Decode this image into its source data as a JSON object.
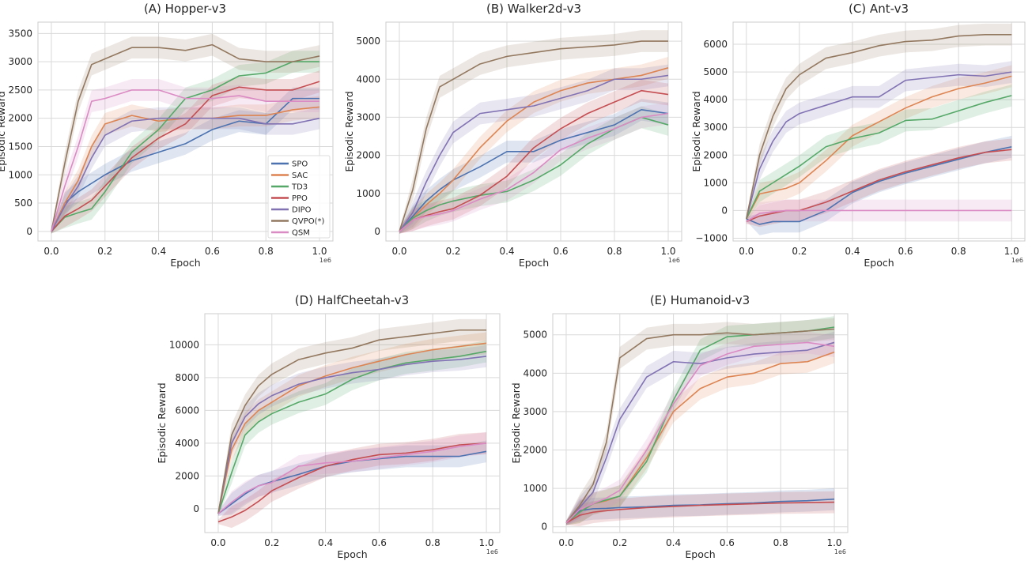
{
  "chart_data": [
    {
      "type": "line",
      "title": "(A) Hopper-v3",
      "xlabel": "Epoch",
      "ylabel": "Episodic Reward",
      "x_offset_label": "1e6",
      "xlim": [
        -0.05,
        1.05
      ],
      "ylim": [
        -170,
        3700
      ],
      "xticks": [
        "0.0",
        "0.2",
        "0.4",
        "0.6",
        "0.8",
        "1.0"
      ],
      "yticks": [
        "0",
        "500",
        "1000",
        "1500",
        "2000",
        "2500",
        "3000",
        "3500"
      ],
      "grid": true,
      "shaded_bands": true,
      "legend": {
        "placement": "lower-right",
        "entries": [
          "SPO",
          "SAC",
          "TD3",
          "PPO",
          "DIPO",
          "QVPO(*)",
          "QSM"
        ]
      },
      "x": [
        0,
        0.05,
        0.1,
        0.15,
        0.2,
        0.3,
        0.4,
        0.5,
        0.6,
        0.7,
        0.8,
        0.9,
        1.0
      ],
      "series": [
        {
          "name": "SPO",
          "values": [
            0,
            500,
            700,
            850,
            1000,
            1250,
            1400,
            1550,
            1800,
            1950,
            1900,
            2350,
            2350
          ]
        },
        {
          "name": "SAC",
          "values": [
            0,
            500,
            900,
            1500,
            1900,
            2050,
            1950,
            2000,
            2000,
            2050,
            2050,
            2150,
            2200
          ]
        },
        {
          "name": "TD3",
          "values": [
            0,
            250,
            330,
            400,
            700,
            1400,
            1800,
            2350,
            2500,
            2750,
            2800,
            3000,
            3000
          ]
        },
        {
          "name": "PPO",
          "values": [
            0,
            270,
            400,
            550,
            800,
            1300,
            1650,
            1900,
            2400,
            2550,
            2500,
            2500,
            2650
          ]
        },
        {
          "name": "DIPO",
          "values": [
            0,
            450,
            800,
            1300,
            1700,
            1950,
            2000,
            2000,
            2000,
            2000,
            1900,
            1900,
            2000
          ]
        },
        {
          "name": "QVPO(*)",
          "values": [
            0,
            1200,
            2300,
            2950,
            3050,
            3250,
            3250,
            3200,
            3300,
            3050,
            3000,
            3000,
            3100
          ]
        },
        {
          "name": "QSM",
          "values": [
            0,
            800,
            1500,
            2300,
            2350,
            2500,
            2500,
            2350,
            2350,
            2400,
            2300,
            2300,
            2300
          ]
        }
      ]
    },
    {
      "type": "line",
      "title": "(B) Walker2d-v3",
      "xlabel": "Epoch",
      "ylabel": "Episodic Reward",
      "x_offset_label": "1e6",
      "xlim": [
        -0.05,
        1.05
      ],
      "ylim": [
        -250,
        5500
      ],
      "xticks": [
        "0.0",
        "0.2",
        "0.4",
        "0.6",
        "0.8",
        "1.0"
      ],
      "yticks": [
        "0",
        "1000",
        "2000",
        "3000",
        "4000",
        "5000"
      ],
      "grid": true,
      "shaded_bands": true,
      "x": [
        0,
        0.05,
        0.1,
        0.15,
        0.2,
        0.3,
        0.4,
        0.5,
        0.6,
        0.7,
        0.8,
        0.9,
        1.0
      ],
      "series": [
        {
          "name": "SPO",
          "values": [
            0,
            400,
            800,
            1100,
            1350,
            1700,
            2100,
            2100,
            2400,
            2600,
            2800,
            3200,
            3100
          ]
        },
        {
          "name": "SAC",
          "values": [
            0,
            350,
            700,
            1000,
            1350,
            2200,
            2900,
            3400,
            3700,
            3900,
            4000,
            4100,
            4300
          ]
        },
        {
          "name": "TD3",
          "values": [
            0,
            350,
            550,
            700,
            800,
            950,
            1050,
            1350,
            1750,
            2300,
            2700,
            3000,
            2800
          ]
        },
        {
          "name": "PPO",
          "values": [
            0,
            300,
            420,
            520,
            600,
            950,
            1450,
            2200,
            2700,
            3100,
            3400,
            3700,
            3600
          ]
        },
        {
          "name": "DIPO",
          "values": [
            0,
            500,
            1300,
            2000,
            2600,
            3100,
            3200,
            3300,
            3500,
            3700,
            4000,
            4000,
            4100
          ]
        },
        {
          "name": "QVPO(*)",
          "values": [
            0,
            1100,
            2700,
            3800,
            4000,
            4400,
            4600,
            4700,
            4800,
            4850,
            4900,
            5000,
            5000
          ]
        },
        {
          "name": "QSM",
          "values": [
            0,
            300,
            400,
            460,
            550,
            850,
            1100,
            1550,
            2150,
            2450,
            2700,
            3000,
            3100
          ]
        }
      ]
    },
    {
      "type": "line",
      "title": "(C) Ant-v3",
      "xlabel": "Epoch",
      "ylabel": "Episodic Reward",
      "x_offset_label": "1e6",
      "xlim": [
        -0.05,
        1.05
      ],
      "ylim": [
        -1100,
        6800
      ],
      "xticks": [
        "0.0",
        "0.2",
        "0.4",
        "0.6",
        "0.8",
        "1.0"
      ],
      "yticks": [
        "−1000",
        "0",
        "1000",
        "2000",
        "3000",
        "4000",
        "5000",
        "6000"
      ],
      "grid": true,
      "shaded_bands": true,
      "x": [
        0,
        0.05,
        0.1,
        0.15,
        0.2,
        0.3,
        0.4,
        0.5,
        0.6,
        0.7,
        0.8,
        0.9,
        1.0
      ],
      "series": [
        {
          "name": "SPO",
          "values": [
            -300,
            -500,
            -400,
            -400,
            -400,
            0,
            650,
            1050,
            1350,
            1600,
            1850,
            2100,
            2300
          ]
        },
        {
          "name": "SAC",
          "values": [
            -300,
            600,
            700,
            800,
            1000,
            1800,
            2700,
            3200,
            3700,
            4100,
            4400,
            4600,
            4850
          ]
        },
        {
          "name": "TD3",
          "values": [
            -300,
            700,
            1000,
            1300,
            1600,
            2300,
            2600,
            2800,
            3250,
            3300,
            3600,
            3900,
            4150
          ]
        },
        {
          "name": "PPO",
          "values": [
            -400,
            -200,
            -100,
            0,
            0,
            300,
            700,
            1100,
            1400,
            1650,
            1900,
            2100,
            2200
          ]
        },
        {
          "name": "DIPO",
          "values": [
            -300,
            1500,
            2500,
            3200,
            3500,
            3800,
            4100,
            4100,
            4700,
            4800,
            4900,
            4850,
            5000
          ]
        },
        {
          "name": "QVPO(*)",
          "values": [
            -300,
            2000,
            3400,
            4400,
            4900,
            5500,
            5700,
            5950,
            6100,
            6150,
            6300,
            6350,
            6350
          ]
        },
        {
          "name": "QSM",
          "values": [
            -400,
            -100,
            -50,
            0,
            0,
            0,
            0,
            0,
            0,
            0,
            0,
            0,
            0
          ]
        }
      ]
    },
    {
      "type": "line",
      "title": "(D) HalfCheetah-v3",
      "xlabel": "Epoch",
      "ylabel": "Episodic Reward",
      "x_offset_label": "1e6",
      "xlim": [
        -0.05,
        1.05
      ],
      "ylim": [
        -1450,
        11900
      ],
      "xticks": [
        "0.0",
        "0.2",
        "0.4",
        "0.6",
        "0.8",
        "1.0"
      ],
      "yticks": [
        "0",
        "2000",
        "4000",
        "6000",
        "8000",
        "10000"
      ],
      "grid": true,
      "shaded_bands": true,
      "x": [
        0,
        0.05,
        0.1,
        0.15,
        0.2,
        0.3,
        0.4,
        0.5,
        0.6,
        0.7,
        0.8,
        0.9,
        1.0
      ],
      "series": [
        {
          "name": "SPO",
          "values": [
            -300,
            300,
            900,
            1400,
            1650,
            2100,
            2600,
            2900,
            3050,
            3200,
            3200,
            3200,
            3500
          ]
        },
        {
          "name": "SAC",
          "values": [
            -300,
            3600,
            5200,
            6000,
            6500,
            7500,
            8100,
            8600,
            9000,
            9400,
            9700,
            9900,
            10100
          ]
        },
        {
          "name": "TD3",
          "values": [
            -300,
            2200,
            4500,
            5300,
            5800,
            6500,
            7000,
            7900,
            8500,
            8900,
            9100,
            9300,
            9600
          ]
        },
        {
          "name": "PPO",
          "values": [
            -800,
            -500,
            -100,
            450,
            1100,
            1900,
            2600,
            3000,
            3300,
            3400,
            3600,
            3900,
            4000
          ]
        },
        {
          "name": "DIPO",
          "values": [
            -300,
            4000,
            5600,
            6400,
            6900,
            7600,
            8000,
            8300,
            8500,
            8800,
            9000,
            9100,
            9300
          ]
        },
        {
          "name": "QVPO(*)",
          "values": [
            -300,
            4500,
            6300,
            7500,
            8200,
            9100,
            9500,
            9800,
            10300,
            10500,
            10700,
            10900,
            10900
          ]
        },
        {
          "name": "QSM",
          "values": [
            -300,
            400,
            1000,
            1400,
            1600,
            2600,
            2800,
            2900,
            3100,
            3300,
            3500,
            3800,
            4000
          ]
        }
      ]
    },
    {
      "type": "line",
      "title": "(E) Humanoid-v3",
      "xlabel": "Epoch",
      "ylabel": "Episodic Reward",
      "x_offset_label": "1e6",
      "xlim": [
        -0.05,
        1.05
      ],
      "ylim": [
        -150,
        5550
      ],
      "xticks": [
        "0.0",
        "0.2",
        "0.4",
        "0.6",
        "0.8",
        "1.0"
      ],
      "yticks": [
        "0",
        "1000",
        "2000",
        "3000",
        "4000",
        "5000"
      ],
      "grid": true,
      "shaded_bands": true,
      "x": [
        0,
        0.05,
        0.1,
        0.15,
        0.2,
        0.3,
        0.4,
        0.5,
        0.6,
        0.7,
        0.8,
        0.9,
        1.0
      ],
      "series": [
        {
          "name": "SPO",
          "values": [
            100,
            420,
            470,
            480,
            500,
            520,
            560,
            570,
            600,
            620,
            660,
            680,
            720
          ]
        },
        {
          "name": "SAC",
          "values": [
            100,
            380,
            600,
            680,
            800,
            1800,
            3000,
            3600,
            3900,
            4000,
            4250,
            4300,
            4550
          ]
        },
        {
          "name": "TD3",
          "values": [
            100,
            380,
            600,
            700,
            800,
            1700,
            3300,
            4600,
            4950,
            5000,
            5050,
            5100,
            5200
          ]
        },
        {
          "name": "PPO",
          "values": [
            100,
            300,
            380,
            420,
            450,
            500,
            530,
            560,
            580,
            600,
            620,
            630,
            640
          ]
        },
        {
          "name": "DIPO",
          "values": [
            100,
            500,
            900,
            1800,
            2800,
            3900,
            4300,
            4250,
            4400,
            4500,
            4550,
            4600,
            4800
          ]
        },
        {
          "name": "QVPO(*)",
          "values": [
            100,
            550,
            1100,
            2200,
            4400,
            4900,
            5000,
            5000,
            5050,
            5000,
            5050,
            5100,
            5150
          ]
        },
        {
          "name": "QSM",
          "values": [
            100,
            450,
            600,
            750,
            950,
            2000,
            3200,
            4200,
            4500,
            4700,
            4750,
            4800,
            4700
          ]
        }
      ]
    }
  ],
  "colors": {
    "SPO": "#4c72b0",
    "SAC": "#dd8452",
    "TD3": "#55a868",
    "PPO": "#c44e52",
    "DIPO": "#8172b3",
    "QVPO(*)": "#937860",
    "QSM": "#da8bc3",
    "grid": "#d9d9d9",
    "frame": "#cccccc"
  }
}
